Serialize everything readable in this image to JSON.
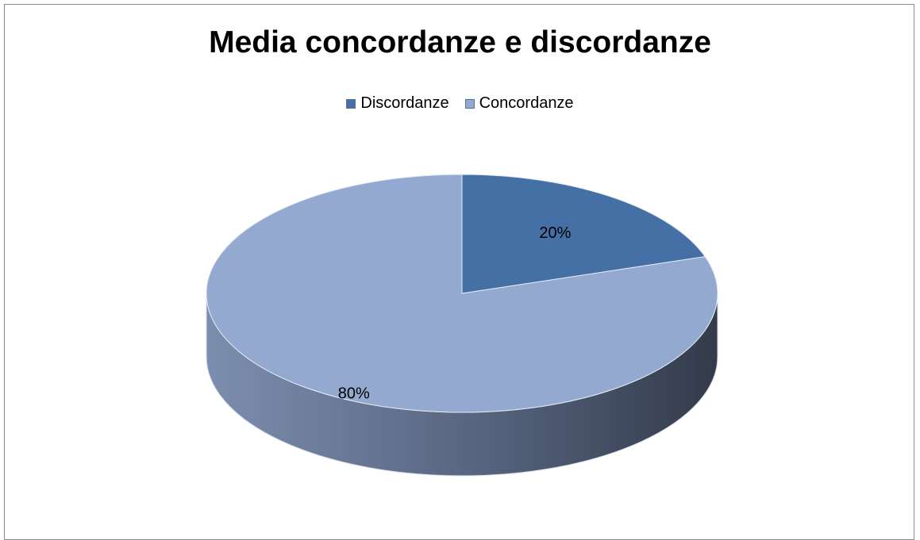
{
  "chart_data": {
    "type": "pie",
    "title": "Media concordanze e discordanze",
    "legend_position": "top",
    "slices": [
      {
        "name": "Discordanze",
        "value": 20,
        "label": "20%",
        "color": "#4470a6"
      },
      {
        "name": "Concordanze",
        "value": 80,
        "label": "80%",
        "color": "#93a9d0"
      }
    ]
  }
}
